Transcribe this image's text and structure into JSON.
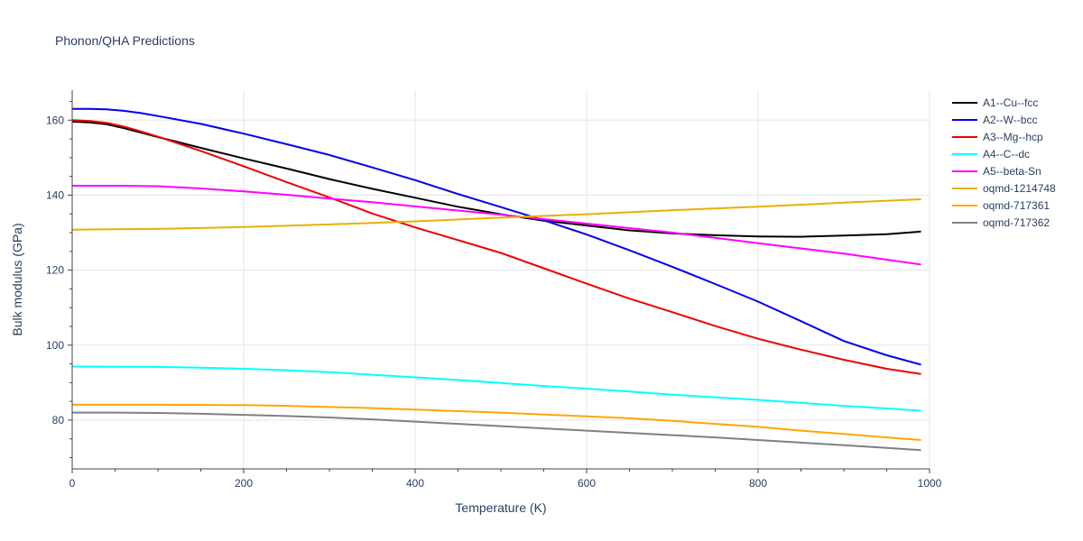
{
  "chart_data": {
    "type": "line",
    "title": "Phonon/QHA Predictions",
    "xlabel": "Temperature (K)",
    "ylabel": "Bulk modulus (GPa)",
    "xlim": [
      0,
      1000
    ],
    "ylim": [
      67,
      168
    ],
    "xticks": [
      0,
      200,
      400,
      600,
      800,
      1000
    ],
    "yticks": [
      80,
      100,
      120,
      140,
      160
    ],
    "grid": true,
    "legend_position": "right",
    "series": [
      {
        "name": "A1--Cu--fcc",
        "color": "#000000",
        "x": [
          0,
          20,
          40,
          60,
          80,
          100,
          150,
          200,
          250,
          300,
          350,
          400,
          450,
          500,
          550,
          600,
          650,
          700,
          750,
          800,
          850,
          900,
          950,
          990
        ],
        "y": [
          159.6,
          159.4,
          158.9,
          157.9,
          156.7,
          155.5,
          152.6,
          149.8,
          147.1,
          144.3,
          141.7,
          139.3,
          136.9,
          134.9,
          133.2,
          131.9,
          130.6,
          129.8,
          129.3,
          129.0,
          128.9,
          129.2,
          129.6,
          130.3
        ]
      },
      {
        "name": "A2--W--bcc",
        "color": "#0000ee",
        "x": [
          0,
          20,
          40,
          60,
          80,
          100,
          150,
          200,
          250,
          300,
          350,
          400,
          450,
          500,
          550,
          600,
          650,
          700,
          750,
          800,
          850,
          900,
          950,
          990
        ],
        "y": [
          163.0,
          163.0,
          162.9,
          162.5,
          161.9,
          161.1,
          159.0,
          156.4,
          153.6,
          150.7,
          147.4,
          144.0,
          140.3,
          136.8,
          133.3,
          129.5,
          125.3,
          120.9,
          116.3,
          111.6,
          106.4,
          101.1,
          97.3,
          94.8
        ]
      },
      {
        "name": "A3--Mg--hcp",
        "color": "#ee0000",
        "x": [
          0,
          20,
          40,
          60,
          80,
          100,
          150,
          200,
          250,
          300,
          350,
          400,
          450,
          500,
          550,
          600,
          650,
          700,
          750,
          800,
          850,
          900,
          950,
          990
        ],
        "y": [
          160.0,
          159.8,
          159.3,
          158.3,
          157.0,
          155.6,
          151.8,
          147.7,
          143.5,
          139.4,
          135.1,
          131.4,
          128.0,
          124.6,
          120.5,
          116.4,
          112.4,
          108.8,
          105.1,
          101.7,
          98.8,
          96.1,
          93.7,
          92.3
        ]
      },
      {
        "name": "A4--C--dc",
        "color": "#00ffff",
        "x": [
          0,
          100,
          150,
          200,
          250,
          300,
          350,
          400,
          450,
          500,
          550,
          600,
          650,
          700,
          750,
          800,
          850,
          900,
          950,
          990
        ],
        "y": [
          94.3,
          94.2,
          94.0,
          93.7,
          93.3,
          92.8,
          92.1,
          91.4,
          90.7,
          89.9,
          89.1,
          88.4,
          87.6,
          86.8,
          86.1,
          85.4,
          84.6,
          83.8,
          83.1,
          82.5
        ]
      },
      {
        "name": "A5--beta-Sn",
        "color": "#ff00ff",
        "x": [
          0,
          50,
          100,
          150,
          200,
          250,
          300,
          350,
          400,
          450,
          500,
          550,
          600,
          650,
          700,
          750,
          800,
          850,
          900,
          950,
          990
        ],
        "y": [
          142.5,
          142.5,
          142.4,
          141.8,
          141.0,
          140.1,
          139.1,
          138.1,
          137.0,
          135.9,
          134.8,
          133.6,
          132.4,
          131.2,
          130.0,
          128.6,
          127.2,
          125.8,
          124.4,
          122.8,
          121.5
        ]
      },
      {
        "name": "oqmd-1214748",
        "color": "#e8b000",
        "x": [
          0,
          100,
          200,
          300,
          400,
          500,
          600,
          700,
          800,
          900,
          990
        ],
        "y": [
          130.8,
          131.0,
          131.5,
          132.2,
          133.0,
          134.0,
          134.9,
          136.0,
          136.9,
          138.0,
          138.9
        ]
      },
      {
        "name": "oqmd-717361",
        "color": "#ffa500",
        "x": [
          0,
          100,
          200,
          250,
          300,
          350,
          400,
          450,
          500,
          550,
          600,
          650,
          700,
          750,
          800,
          850,
          900,
          950,
          990
        ],
        "y": [
          84.1,
          84.1,
          84.0,
          83.8,
          83.5,
          83.2,
          82.8,
          82.4,
          82.0,
          81.5,
          81.0,
          80.5,
          79.8,
          79.0,
          78.2,
          77.2,
          76.3,
          75.4,
          74.7
        ]
      },
      {
        "name": "oqmd-717362",
        "color": "#808080",
        "x": [
          0,
          50,
          100,
          150,
          200,
          250,
          300,
          350,
          400,
          450,
          500,
          550,
          600,
          650,
          700,
          750,
          800,
          850,
          900,
          950,
          990
        ],
        "y": [
          82.0,
          82.0,
          81.9,
          81.7,
          81.4,
          81.1,
          80.7,
          80.2,
          79.6,
          79.0,
          78.4,
          77.8,
          77.2,
          76.6,
          76.0,
          75.4,
          74.7,
          74.0,
          73.3,
          72.6,
          72.0
        ]
      }
    ]
  }
}
